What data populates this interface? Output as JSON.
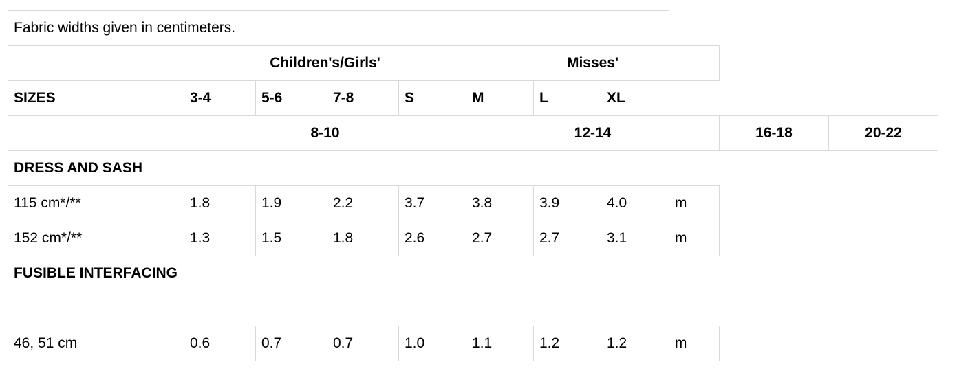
{
  "note": "Fabric widths given in centimeters.",
  "groups": {
    "children": "Children's/Girls'",
    "misses": "Misses'"
  },
  "sizes": {
    "label": "SIZES",
    "values": [
      "3-4",
      "5-6",
      "7-8",
      "S",
      "M",
      "L",
      "XL"
    ],
    "numeric": [
      "8-10",
      "12-14",
      "16-18",
      "20-22"
    ]
  },
  "dress": {
    "heading": "DRESS AND SASH",
    "rows": [
      {
        "label": "115 cm*/**",
        "values": [
          "1.8",
          "1.9",
          "2.2",
          "3.7",
          "3.8",
          "3.9",
          "4.0"
        ],
        "unit": "m"
      },
      {
        "label": "152 cm*/**",
        "values": [
          "1.3",
          "1.5",
          "1.8",
          "2.6",
          "2.7",
          "2.7",
          "3.1"
        ],
        "unit": "m"
      }
    ]
  },
  "interfacing": {
    "heading": "FUSIBLE INTERFACING",
    "rows": [
      {
        "label": "46, 51 cm",
        "values": [
          "0.6",
          "0.7",
          "0.7",
          "1.0",
          "1.1",
          "1.2",
          "1.2"
        ],
        "unit": "m"
      }
    ]
  }
}
